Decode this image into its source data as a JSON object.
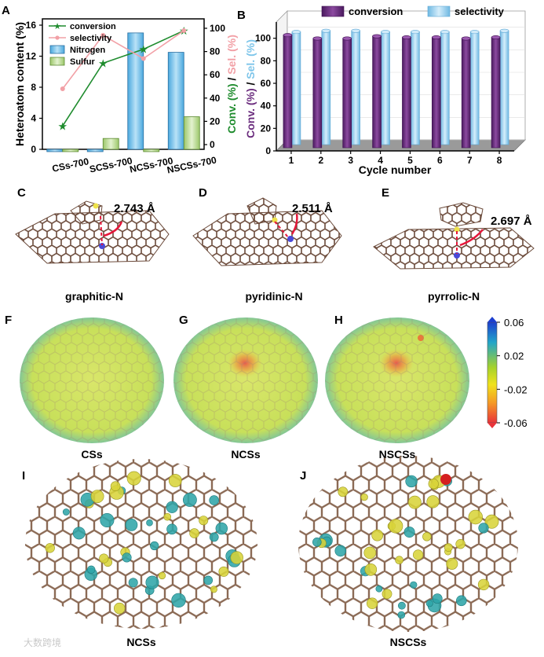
{
  "panels": {
    "A": "A",
    "B": "B",
    "C": "C",
    "D": "D",
    "E": "E",
    "F": "F",
    "G": "G",
    "H": "H",
    "I": "I",
    "J": "J"
  },
  "chart_data": [
    {
      "type": "bar",
      "panel": "A",
      "categories": [
        "CSs-700",
        "SCSs-700",
        "NCSs-700",
        "NSCSs-700"
      ],
      "ylabel": "Heteroatom content (%)",
      "ylim": [
        0,
        16
      ],
      "yticks": [
        0,
        4,
        8,
        12,
        16
      ],
      "y2label_parts": [
        "Conv. (%)",
        " / ",
        "Sel. (%)"
      ],
      "y2lim": [
        0,
        100
      ],
      "y2ticks": [
        0,
        20,
        40,
        60,
        80,
        100
      ],
      "legend": [
        "conversion",
        "selectivity",
        "Nitrogen",
        "Sulfur"
      ],
      "series": [
        {
          "name": "Nitrogen",
          "axis": "left",
          "kind": "bar",
          "color": "#7fc6ea",
          "values": [
            -0.3,
            -0.3,
            15.0,
            12.5
          ]
        },
        {
          "name": "Sulfur",
          "axis": "left",
          "kind": "bar",
          "color": "#c6e2a4",
          "values": [
            -0.3,
            1.4,
            -0.3,
            4.2
          ]
        },
        {
          "name": "conversion",
          "axis": "right",
          "kind": "line",
          "color": "#1f8c2e",
          "values": [
            16,
            70,
            82,
            98
          ]
        },
        {
          "name": "selectivity",
          "axis": "right",
          "kind": "line",
          "color": "#f2a0a6",
          "values": [
            48,
            94,
            74,
            98
          ]
        }
      ]
    },
    {
      "type": "bar",
      "panel": "B",
      "categories": [
        "1",
        "2",
        "3",
        "4",
        "5",
        "6",
        "7",
        "8"
      ],
      "xlabel": "Cycle number",
      "ylabel_parts": [
        "Conv. (%)",
        " / ",
        "Sel. (%)"
      ],
      "ylim": [
        0,
        120
      ],
      "yticks": [
        0,
        20,
        40,
        60,
        80,
        100
      ],
      "legend": [
        "conversion",
        "selectivity"
      ],
      "series": [
        {
          "name": "conversion",
          "color": "#6b2d7e",
          "values": [
            100,
            97,
            97,
            99,
            98,
            98,
            97,
            98
          ]
        },
        {
          "name": "selectivity",
          "color": "#9fd3f0",
          "values": [
            100,
            101,
            101,
            100,
            100,
            100,
            100,
            101
          ]
        }
      ]
    },
    {
      "type": "heatmap",
      "panel": "colorbar",
      "ticks": [
        "0.06",
        "0.02",
        "-0.02",
        "-0.06"
      ]
    }
  ],
  "structures": {
    "C": {
      "label": "graphitic-N",
      "distance": "2.743 Å"
    },
    "D": {
      "label": "pyridinic-N",
      "distance": "2.511 Å"
    },
    "E": {
      "label": "pyrrolic-N",
      "distance": "2.697 Å"
    }
  },
  "esp_maps": {
    "F": "CSs",
    "G": "NCSs",
    "H": "NSCSs"
  },
  "charge_maps": {
    "I": "NCSs",
    "J": "NSCSs"
  },
  "watermark": "大数跨境"
}
